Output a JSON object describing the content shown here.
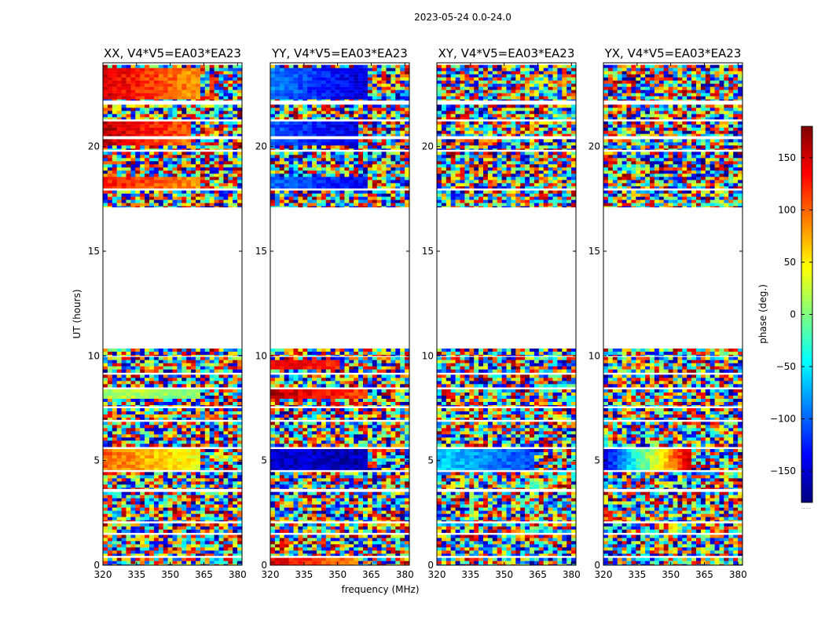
{
  "figure": {
    "suptitle": "2023-05-24 0.0-24.0",
    "ylabel": "UT (hours)",
    "xlabel": "frequency (MHz)",
    "cbar_label": "phase (deg.)",
    "cbar_dots": "....."
  },
  "colors": {
    "jet": [
      "#00007f",
      "#0000ff",
      "#007fff",
      "#00ffff",
      "#7fff7f",
      "#ffff00",
      "#ff7f00",
      "#ff0000",
      "#7f0000"
    ],
    "flagged": "#ffffff"
  },
  "chart_data": {
    "type": "heatmap",
    "title": "2023-05-24 0.0-24.0",
    "xlabel": "frequency (MHz)",
    "ylabel": "UT (hours)",
    "xlim": [
      320,
      382
    ],
    "ylim": [
      0,
      24
    ],
    "x_ticks": [
      "320",
      "335",
      "350",
      "365",
      "380"
    ],
    "x_tick_values": [
      320,
      335,
      350,
      365,
      380
    ],
    "y_ticks": [
      "0",
      "5",
      "10",
      "15",
      "20"
    ],
    "y_tick_values": [
      0,
      5,
      10,
      15,
      20
    ],
    "colorbar": {
      "label": "phase (deg.)",
      "range": [
        -180,
        180
      ],
      "ticks": [
        "−150",
        "−100",
        "−50",
        "0",
        "50",
        "100",
        "150"
      ],
      "tick_values": [
        -150,
        -100,
        -50,
        0,
        50,
        100,
        150
      ],
      "colormap": "jet"
    },
    "scan_ranges_hours": [
      [
        0.0,
        0.35
      ],
      [
        0.45,
        1.45
      ],
      [
        1.55,
        2.0
      ],
      [
        2.1,
        3.5
      ],
      [
        3.65,
        4.45
      ],
      [
        4.55,
        5.55
      ],
      [
        5.65,
        6.85
      ],
      [
        6.95,
        7.5
      ],
      [
        7.6,
        8.4
      ],
      [
        8.5,
        9.1
      ],
      [
        9.2,
        9.95
      ],
      [
        10.0,
        10.35
      ],
      [
        17.1,
        17.9
      ],
      [
        18.0,
        19.75
      ],
      [
        19.85,
        20.35
      ],
      [
        20.5,
        21.2
      ],
      [
        21.3,
        22.0
      ],
      [
        22.2,
        23.9
      ]
    ],
    "panels": [
      {
        "title": "XX, V4*V5=EA03*EA23",
        "coherent_bands": [
          {
            "t0": 4.6,
            "t1": 5.5,
            "f_cutoff": 363,
            "phase_low_f": 100,
            "phase_high_f": 40
          },
          {
            "t0": 7.95,
            "t1": 8.35,
            "f_cutoff": 363,
            "phase_low_f": 20,
            "phase_high_f": 0
          },
          {
            "t0": 20.0,
            "t1": 20.35,
            "f_cutoff": 360,
            "phase_low_f": 160,
            "phase_high_f": 80
          },
          {
            "t0": 20.5,
            "t1": 21.2,
            "f_cutoff": 360,
            "phase_low_f": 160,
            "phase_high_f": 100
          },
          {
            "t0": 17.9,
            "t1": 18.5,
            "f_cutoff": 363,
            "phase_low_f": 130,
            "phase_high_f": 80
          },
          {
            "t0": 22.3,
            "t1": 23.8,
            "f_cutoff": 363,
            "phase_low_f": 150,
            "phase_high_f": 80
          }
        ]
      },
      {
        "title": "YY, V4*V5=EA03*EA23",
        "coherent_bands": [
          {
            "t0": 4.6,
            "t1": 5.5,
            "f_cutoff": 363,
            "phase_low_f": -150,
            "phase_high_f": -160
          },
          {
            "t0": 7.95,
            "t1": 8.35,
            "f_cutoff": 363,
            "phase_low_f": 160,
            "phase_high_f": 110
          },
          {
            "t0": 9.3,
            "t1": 9.8,
            "f_cutoff": 350,
            "phase_low_f": 150,
            "phase_high_f": 120
          },
          {
            "t0": 0.0,
            "t1": 0.35,
            "f_cutoff": 360,
            "phase_low_f": 150,
            "phase_high_f": 80
          },
          {
            "t0": 20.0,
            "t1": 20.35,
            "f_cutoff": 360,
            "phase_low_f": -100,
            "phase_high_f": -150
          },
          {
            "t0": 20.5,
            "t1": 21.2,
            "f_cutoff": 360,
            "phase_low_f": -100,
            "phase_high_f": -150
          },
          {
            "t0": 17.9,
            "t1": 18.5,
            "f_cutoff": 363,
            "phase_low_f": -100,
            "phase_high_f": -140
          },
          {
            "t0": 22.3,
            "t1": 23.8,
            "f_cutoff": 363,
            "phase_low_f": -90,
            "phase_high_f": -150
          }
        ]
      },
      {
        "title": "XY, V4*V5=EA03*EA23",
        "coherent_bands": [
          {
            "t0": 4.6,
            "t1": 5.5,
            "f_cutoff": 363,
            "phase_low_f": -60,
            "phase_high_f": -110
          }
        ]
      },
      {
        "title": "YX, V4*V5=EA03*EA23",
        "coherent_bands": [
          {
            "t0": 4.6,
            "t1": 5.5,
            "f_cutoff": 360,
            "phase_low_f": -150,
            "phase_high_f": 160
          }
        ]
      }
    ]
  }
}
